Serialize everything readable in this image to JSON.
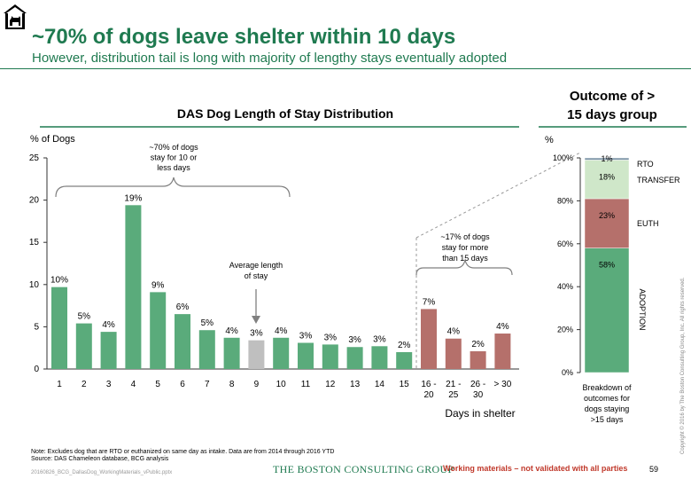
{
  "header": {
    "title": "~70% of dogs leave shelter within 10 days",
    "subtitle": "However, distribution tail is long with majority of lengthy stays eventually adopted"
  },
  "colors": {
    "green": "#5aab7b",
    "gray": "#bfbfbf",
    "red": "#b5706b",
    "light_green": "#cfe7c9",
    "steel": "#7f97a8",
    "accent": "#1f7a50"
  },
  "chart_data": [
    {
      "type": "bar",
      "title": "DAS Dog Length of Stay Distribution",
      "ylabel": "% of Dogs",
      "xlabel": "Days in shelter",
      "ylim": [
        0,
        25
      ],
      "yticks": [
        0,
        5,
        10,
        15,
        20,
        25
      ],
      "categories": [
        "1",
        "2",
        "3",
        "4",
        "5",
        "6",
        "7",
        "8",
        "9",
        "10",
        "11",
        "12",
        "13",
        "14",
        "15",
        "16 - 20",
        "21 - 25",
        "26 - 30",
        "> 30"
      ],
      "category_lines": [
        [
          "1"
        ],
        [
          "2"
        ],
        [
          "3"
        ],
        [
          "4"
        ],
        [
          "5"
        ],
        [
          "6"
        ],
        [
          "7"
        ],
        [
          "8"
        ],
        [
          "9"
        ],
        [
          "10"
        ],
        [
          "11"
        ],
        [
          "12"
        ],
        [
          "13"
        ],
        [
          "14"
        ],
        [
          "15"
        ],
        [
          "16 -",
          "20"
        ],
        [
          "21 -",
          "25"
        ],
        [
          "26 -",
          "30"
        ],
        [
          "> 30"
        ]
      ],
      "values": [
        9.7,
        5.4,
        4.4,
        19.4,
        9.1,
        6.5,
        4.6,
        3.7,
        3.4,
        3.7,
        3.1,
        2.9,
        2.6,
        2.7,
        2.0,
        7.1,
        3.6,
        2.1,
        4.2
      ],
      "data_labels": [
        "10%",
        "5%",
        "4%",
        "19%",
        "9%",
        "6%",
        "5%",
        "4%",
        "3%",
        "4%",
        "3%",
        "3%",
        "3%",
        "3%",
        "2%",
        "7%",
        "4%",
        "2%",
        "4%"
      ],
      "bar_colors": [
        "green",
        "green",
        "green",
        "green",
        "green",
        "green",
        "green",
        "green",
        "gray",
        "green",
        "green",
        "green",
        "green",
        "green",
        "green",
        "red",
        "red",
        "red",
        "red"
      ],
      "annotations": [
        {
          "id": "seventy",
          "lines": [
            "~70% of dogs",
            "stay for 10 or",
            "less days"
          ]
        },
        {
          "id": "average",
          "lines": [
            "Average length",
            "of stay"
          ]
        },
        {
          "id": "seventeen",
          "lines": [
            "~17% of dogs",
            "stay for more",
            "than 15 days"
          ]
        }
      ]
    },
    {
      "type": "stacked_bar",
      "title_lines": [
        "Outcome of >",
        "15 days group"
      ],
      "ylabel": "%",
      "ylim": [
        0,
        100
      ],
      "yticks": [
        "0%",
        "20%",
        "40%",
        "60%",
        "80%",
        "100%"
      ],
      "segments": [
        {
          "name": "ADOPTION",
          "value": 58,
          "label": "58%",
          "color": "green"
        },
        {
          "name": "EUTH",
          "value": 23,
          "label": "23%",
          "color": "red"
        },
        {
          "name": "TRANSFER",
          "value": 18,
          "label": "18%",
          "color": "light_green"
        },
        {
          "name": "RTO",
          "value": 1,
          "label": "1%",
          "color": "steel"
        }
      ],
      "caption_lines": [
        "Breakdown of",
        "outcomes for",
        "dogs staying",
        ">15 days"
      ]
    }
  ],
  "footer": {
    "note": "Note: Excludes dog that are RTO or euthanized on same day as intake. Data are from 2014 through 2016 YTD",
    "source": "Source: DAS Chameleon database, BCG analysis",
    "filename": "20160826_BCG_DallasDog_WorkingMaterials_vPublic.pptx",
    "brand": "THE BOSTON CONSULTING GROUP",
    "working_materials": "Working materials – not validated with all parties",
    "page_number": "59",
    "copyright": "Copyright © 2016 by The Boston Consulting Group, Inc. All rights reserved."
  }
}
